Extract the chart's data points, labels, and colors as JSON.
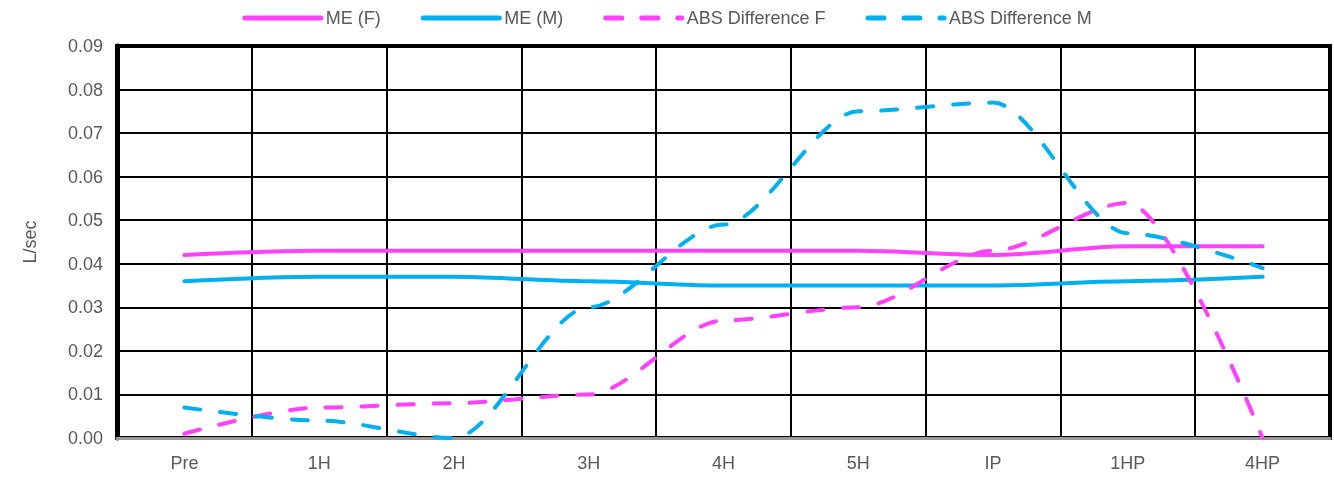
{
  "chart_data": {
    "type": "line",
    "ylabel": "L/sec",
    "categories": [
      "Pre",
      "1H",
      "2H",
      "3H",
      "4H",
      "5H",
      "IP",
      "1HP",
      "4HP"
    ],
    "series": [
      {
        "name": "ME (F)",
        "color": "#ff40ff",
        "line_style": "solid",
        "values": [
          0.042,
          0.043,
          0.043,
          0.043,
          0.043,
          0.043,
          0.042,
          0.044,
          0.044
        ]
      },
      {
        "name": "ME (M)",
        "color": "#00b0f0",
        "line_style": "solid",
        "values": [
          0.036,
          0.037,
          0.037,
          0.036,
          0.035,
          0.035,
          0.035,
          0.036,
          0.037
        ]
      },
      {
        "name": "ABS Difference F",
        "color": "#ff40ff",
        "line_style": "dashed",
        "values": [
          0.001,
          0.007,
          0.008,
          0.01,
          0.027,
          0.03,
          0.043,
          0.054,
          0.0
        ]
      },
      {
        "name": "ABS Difference M",
        "color": "#00b0f0",
        "line_style": "dashed",
        "values": [
          0.007,
          0.004,
          0.0,
          0.03,
          0.049,
          0.075,
          0.077,
          0.047,
          0.039
        ]
      }
    ],
    "ylim": [
      0,
      0.09
    ],
    "yticks": [
      {
        "value": 0,
        "label": "0.00"
      },
      0.01,
      0.02,
      0.03,
      0.04,
      0.05,
      0.06,
      0.07,
      0.08,
      0.09
    ],
    "grid": true,
    "legend": "top",
    "marker": "none"
  }
}
